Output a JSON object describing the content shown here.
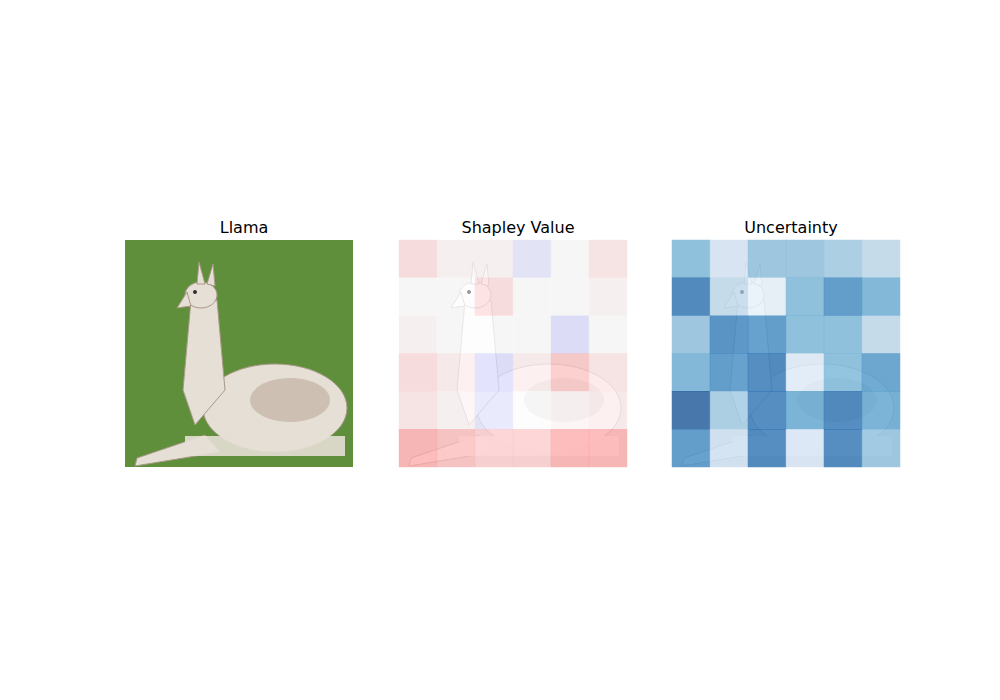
{
  "chart_data": [
    {
      "type": "image",
      "title": "Llama"
    },
    {
      "type": "heatmap",
      "title": "Shapley Value",
      "color": "bwr",
      "tick_labels": false,
      "color_range": [
        -1,
        1
      ],
      "values": [
        [
          0.2,
          0.05,
          0.05,
          -0.15,
          0.0,
          0.15
        ],
        [
          0.0,
          0.0,
          0.2,
          0.0,
          0.0,
          0.05
        ],
        [
          0.05,
          0.0,
          0.0,
          0.0,
          -0.2,
          0.0
        ],
        [
          0.2,
          0.1,
          -0.2,
          0.1,
          0.35,
          0.15
        ],
        [
          0.15,
          0.05,
          -0.15,
          0.0,
          0.05,
          0.1
        ],
        [
          0.5,
          0.4,
          0.3,
          0.3,
          0.5,
          0.5
        ]
      ]
    },
    {
      "type": "heatmap",
      "title": "Uncertainty",
      "color": "Blues",
      "tick_labels": false,
      "color_range": [
        0,
        1
      ],
      "values": [
        [
          0.5,
          0.2,
          0.45,
          0.45,
          0.4,
          0.3
        ],
        [
          0.8,
          0.3,
          0.1,
          0.5,
          0.7,
          0.55
        ],
        [
          0.45,
          0.75,
          0.7,
          0.5,
          0.5,
          0.3
        ],
        [
          0.55,
          0.7,
          0.8,
          0.15,
          0.5,
          0.65
        ],
        [
          0.9,
          0.4,
          0.8,
          0.6,
          0.8,
          0.6
        ],
        [
          0.7,
          0.25,
          0.8,
          0.2,
          0.8,
          0.45
        ]
      ]
    }
  ]
}
